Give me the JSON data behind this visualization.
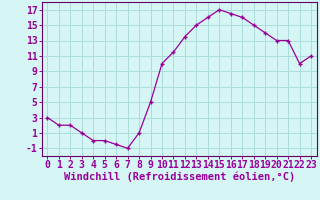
{
  "hours": [
    0,
    1,
    2,
    3,
    4,
    5,
    6,
    7,
    8,
    9,
    10,
    11,
    12,
    13,
    14,
    15,
    16,
    17,
    18,
    19,
    20,
    21,
    22,
    23
  ],
  "values": [
    3,
    2,
    2,
    1,
    0,
    0,
    -0.5,
    -1,
    1,
    5,
    10,
    11.5,
    13.5,
    15,
    16,
    17,
    16.5,
    16,
    15,
    14,
    13,
    13,
    10,
    11
  ],
  "line_color": "#990099",
  "marker": "+",
  "bg_color": "#d6f5f5",
  "grid_color": "#aadddd",
  "xlabel": "Windchill (Refroidissement éolien,°C)",
  "ylim": [
    -2,
    18
  ],
  "yticks": [
    -1,
    1,
    3,
    5,
    7,
    9,
    11,
    13,
    15,
    17
  ],
  "xlim": [
    -0.5,
    23.5
  ],
  "xticks": [
    0,
    1,
    2,
    3,
    4,
    5,
    6,
    7,
    8,
    9,
    10,
    11,
    12,
    13,
    14,
    15,
    16,
    17,
    18,
    19,
    20,
    21,
    22,
    23
  ],
  "xlabel_color": "#990099",
  "tick_color": "#990099",
  "axis_color": "#990099",
  "spine_color": "#660066",
  "tick_fontsize": 7,
  "xlabel_fontsize": 7.5
}
